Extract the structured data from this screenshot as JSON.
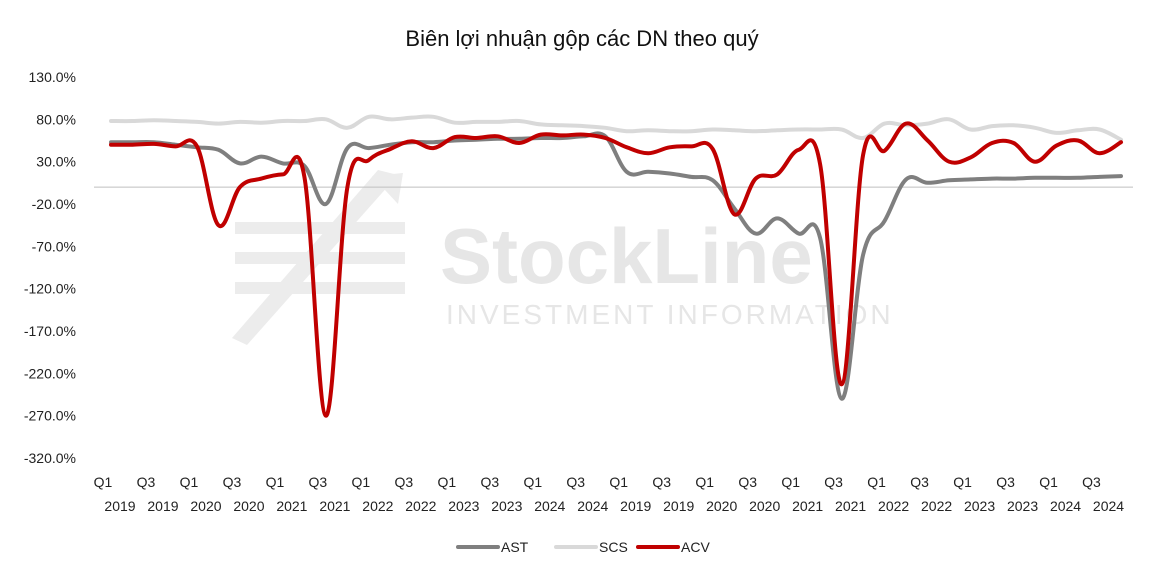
{
  "chart_data": {
    "type": "line",
    "title": "Biên lợi nhuận gộp các DN theo quý",
    "xlabel": "",
    "ylabel": "",
    "ylim": [
      -320,
      130
    ],
    "y_ticks": [
      "130.0%",
      "80.0%",
      "30.0%",
      "-20.0%",
      "-70.0%",
      "-120.0%",
      "-170.0%",
      "-220.0%",
      "-270.0%",
      "-320.0%"
    ],
    "y_tick_values": [
      130,
      80,
      30,
      -20,
      -70,
      -120,
      -170,
      -220,
      -270,
      -320
    ],
    "grid": false,
    "legend_position": "bottom",
    "categories": [
      "Q1 2019",
      "Q2 2019",
      "Q3 2019",
      "Q4 2019",
      "Q1 2020",
      "Q2 2020",
      "Q3 2020",
      "Q4 2020",
      "Q1 2021",
      "Q2 2021",
      "Q3 2021",
      "Q4 2021",
      "Q1 2022",
      "Q2 2022",
      "Q3 2022",
      "Q4 2022",
      "Q1 2023",
      "Q2 2023",
      "Q3 2023",
      "Q4 2023",
      "Q1 2024",
      "Q2 2024",
      "Q3 2024",
      "Q4 2024",
      "Q1 2019",
      "Q2 2019",
      "Q3 2019",
      "Q4 2019",
      "Q1 2020",
      "Q2 2020",
      "Q3 2020",
      "Q4 2020",
      "Q1 2021",
      "Q2 2021",
      "Q3 2021",
      "Q4 2021",
      "Q1 2022",
      "Q2 2022",
      "Q3 2022",
      "Q4 2022",
      "Q1 2023",
      "Q2 2023",
      "Q3 2023",
      "Q4 2023",
      "Q1 2024",
      "Q2 2024",
      "Q3 2024",
      "Q4 2024"
    ],
    "x_tick_labels": [
      {
        "index": 0,
        "q": "Q1",
        "y": "2019"
      },
      {
        "index": 2,
        "q": "Q3",
        "y": "2019"
      },
      {
        "index": 4,
        "q": "Q1",
        "y": "2020"
      },
      {
        "index": 6,
        "q": "Q3",
        "y": "2020"
      },
      {
        "index": 8,
        "q": "Q1",
        "y": "2021"
      },
      {
        "index": 10,
        "q": "Q3",
        "y": "2021"
      },
      {
        "index": 12,
        "q": "Q1",
        "y": "2022"
      },
      {
        "index": 14,
        "q": "Q3",
        "y": "2022"
      },
      {
        "index": 16,
        "q": "Q1",
        "y": "2023"
      },
      {
        "index": 18,
        "q": "Q3",
        "y": "2023"
      },
      {
        "index": 20,
        "q": "Q1",
        "y": "2024"
      },
      {
        "index": 22,
        "q": "Q3",
        "y": "2024"
      },
      {
        "index": 24,
        "q": "Q1",
        "y": "2019"
      },
      {
        "index": 26,
        "q": "Q3",
        "y": "2019"
      },
      {
        "index": 28,
        "q": "Q1",
        "y": "2020"
      },
      {
        "index": 30,
        "q": "Q3",
        "y": "2020"
      },
      {
        "index": 32,
        "q": "Q1",
        "y": "2021"
      },
      {
        "index": 34,
        "q": "Q3",
        "y": "2021"
      },
      {
        "index": 36,
        "q": "Q1",
        "y": "2022"
      },
      {
        "index": 38,
        "q": "Q3",
        "y": "2022"
      },
      {
        "index": 40,
        "q": "Q1",
        "y": "2023"
      },
      {
        "index": 42,
        "q": "Q3",
        "y": "2023"
      },
      {
        "index": 44,
        "q": "Q1",
        "y": "2024"
      },
      {
        "index": 46,
        "q": "Q3",
        "y": "2024"
      }
    ],
    "series": [
      {
        "name": "AST",
        "color": "#7f7f7f",
        "values": [
          53,
          53,
          53,
          50,
          47,
          44,
          28,
          36,
          28,
          25,
          -20,
          46,
          46,
          50,
          53,
          53,
          55,
          56,
          57,
          57,
          58,
          58,
          60,
          60,
          18,
          18,
          16,
          12,
          8,
          -25,
          -55,
          -37,
          -55,
          -60,
          -250,
          -80,
          -40,
          9,
          5,
          8,
          9,
          10,
          10,
          11,
          11,
          11,
          12,
          13
        ]
      },
      {
        "name": "SCS",
        "color": "#d9d9d9",
        "values": [
          78,
          78,
          79,
          78,
          77,
          75,
          77,
          76,
          78,
          78,
          80,
          70,
          83,
          80,
          82,
          83,
          76,
          77,
          77,
          78,
          74,
          73,
          72,
          70,
          66,
          67,
          66,
          66,
          68,
          67,
          66,
          67,
          68,
          68,
          68,
          58,
          75,
          73,
          75,
          80,
          68,
          72,
          73,
          70,
          64,
          67,
          68,
          56
        ]
      },
      {
        "name": "ACV",
        "color": "#c00000",
        "values": [
          50,
          50,
          51,
          48,
          48,
          -45,
          0,
          10,
          15,
          12,
          -270,
          0,
          32,
          45,
          54,
          46,
          59,
          58,
          60,
          52,
          62,
          61,
          62,
          58,
          47,
          40,
          47,
          48,
          45,
          -32,
          10,
          15,
          44,
          27,
          -233,
          38,
          43,
          75,
          55,
          30,
          35,
          52,
          52,
          30,
          49,
          55,
          40,
          53
        ]
      }
    ]
  },
  "watermark": {
    "brand": "StockLine",
    "tagline": "INVESTMENT INFORMATION"
  }
}
